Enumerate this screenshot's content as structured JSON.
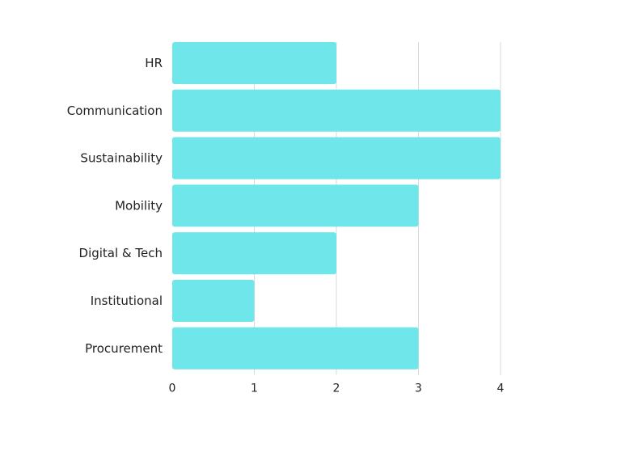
{
  "chart_data": {
    "type": "bar",
    "orientation": "horizontal",
    "categories": [
      "HR",
      "Communication",
      "Sustainability",
      "Mobility",
      "Digital & Tech",
      "Institutional",
      "Procurement"
    ],
    "values": [
      2,
      4,
      4,
      3,
      2,
      1,
      3
    ],
    "x_ticks": [
      "0",
      "1",
      "2",
      "3",
      "4"
    ],
    "xlim": [
      0,
      4
    ],
    "grid": true,
    "legend": "none",
    "title": "",
    "xlabel": "",
    "ylabel": "",
    "colors": {
      "bar": "#6ee6ea",
      "grid": "#d9d9d9",
      "text": "#222222"
    }
  }
}
